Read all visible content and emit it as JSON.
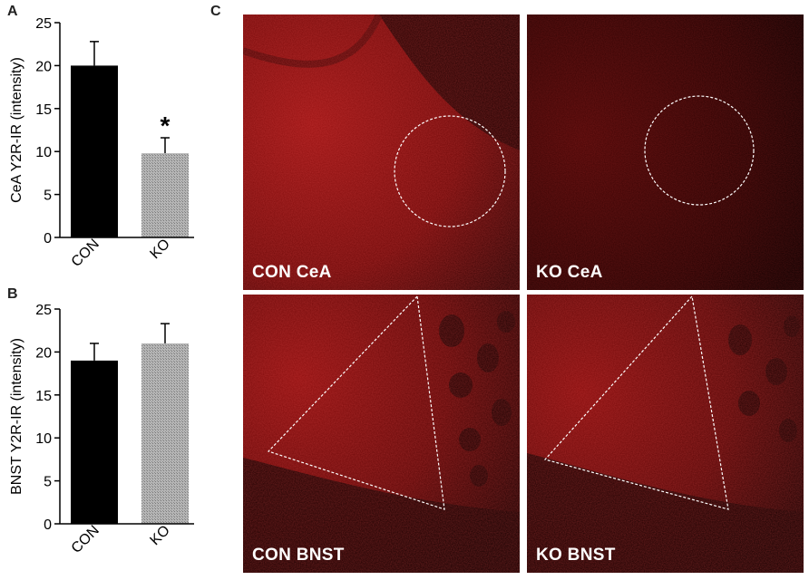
{
  "panel_letters": {
    "a": "A",
    "b": "B",
    "c": "C"
  },
  "chart_data": [
    {
      "type": "bar",
      "panel": "A",
      "categories": [
        "CON",
        "KO"
      ],
      "values": [
        20,
        9.8
      ],
      "errors": [
        2.8,
        1.8
      ],
      "bar_colors": [
        "#000000",
        "#a6a6a6"
      ],
      "ylabel": "CeA Y2R-IR (intensity)",
      "ylim": [
        0,
        25
      ],
      "yticks": [
        "0",
        "5",
        "10",
        "15",
        "20",
        "25"
      ],
      "annotation": "*",
      "annotation_category": "KO"
    },
    {
      "type": "bar",
      "panel": "B",
      "categories": [
        "CON",
        "KO"
      ],
      "values": [
        19,
        21
      ],
      "errors": [
        2.0,
        2.3
      ],
      "bar_colors": [
        "#000000",
        "#a6a6a6"
      ],
      "ylabel": "BNST Y2R-IR (intensity)",
      "ylim": [
        0,
        25
      ],
      "yticks": [
        "0",
        "5",
        "10",
        "15",
        "20",
        "25"
      ]
    }
  ],
  "micrographs": [
    {
      "caption": "CON CeA",
      "roi": "circle",
      "tone": "bright"
    },
    {
      "caption": "KO CeA",
      "roi": "circle",
      "tone": "dim"
    },
    {
      "caption": "CON BNST",
      "roi": "triangle",
      "tone": "bright"
    },
    {
      "caption": "KO BNST",
      "roi": "triangle",
      "tone": "bright"
    }
  ],
  "colors": {
    "stain_red": "#8a0c0c",
    "background": "#0a0000"
  }
}
